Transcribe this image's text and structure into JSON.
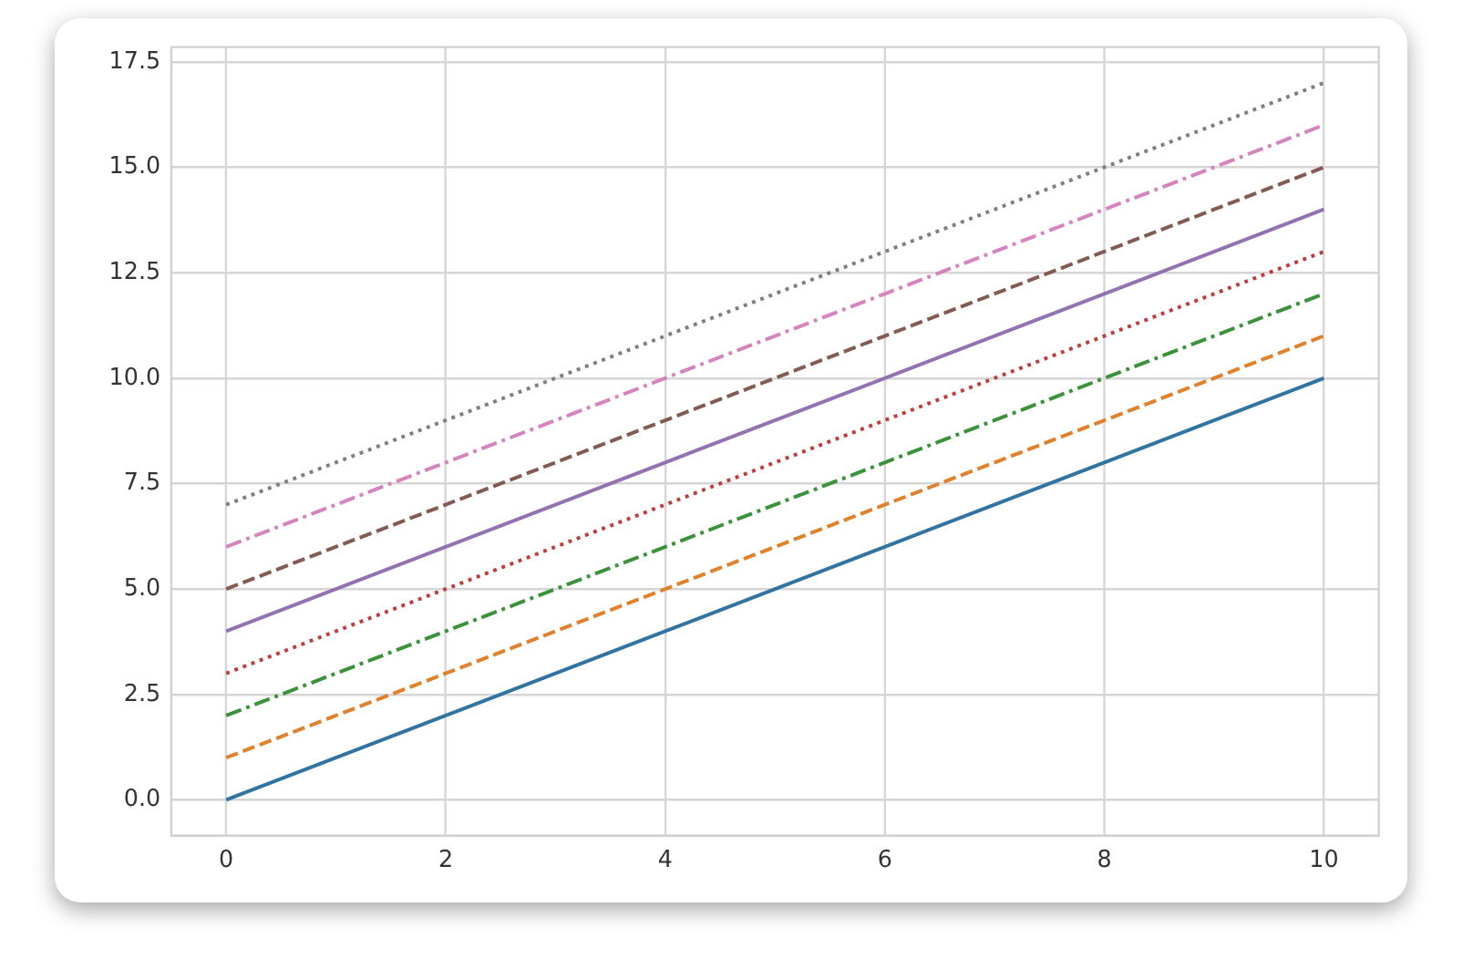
{
  "chart_data": {
    "type": "line",
    "x": [
      0,
      2,
      4,
      6,
      8,
      10
    ],
    "series": [
      {
        "color": "#3274a1",
        "line_style": "solid",
        "values": [
          0,
          2,
          4,
          6,
          8,
          10
        ]
      },
      {
        "color": "#e1812c",
        "line_style": "dashed",
        "values": [
          1,
          3,
          5,
          7,
          9,
          11
        ]
      },
      {
        "color": "#3a923a",
        "line_style": "dashdot",
        "values": [
          2,
          4,
          6,
          8,
          10,
          12
        ]
      },
      {
        "color": "#c03d3e",
        "line_style": "dotted",
        "values": [
          3,
          5,
          7,
          9,
          11,
          13
        ]
      },
      {
        "color": "#9372b2",
        "line_style": "solid",
        "values": [
          4,
          6,
          8,
          10,
          12,
          14
        ]
      },
      {
        "color": "#845b53",
        "line_style": "dashed",
        "values": [
          5,
          7,
          9,
          11,
          13,
          15
        ]
      },
      {
        "color": "#d684bd",
        "line_style": "dashdot",
        "values": [
          6,
          8,
          10,
          12,
          14,
          16
        ]
      },
      {
        "color": "#7f7f7f",
        "line_style": "dotted",
        "values": [
          7,
          9,
          11,
          13,
          15,
          17
        ]
      }
    ],
    "xlim": [
      -0.5,
      10.5
    ],
    "ylim": [
      -0.85,
      17.85
    ],
    "xticks": [
      0,
      2,
      4,
      6,
      8,
      10
    ],
    "yticks": [
      {
        "value": 0,
        "label": "0.0"
      },
      {
        "value": 2.5,
        "label": "2.5"
      },
      {
        "value": 5,
        "label": "5.0"
      },
      {
        "value": 7.5,
        "label": "7.5"
      },
      {
        "value": 10,
        "label": "10.0"
      },
      {
        "value": 12.5,
        "label": "12.5"
      },
      {
        "value": 15,
        "label": "15.0"
      },
      {
        "value": 17.5,
        "label": "17.5"
      }
    ],
    "grid": true,
    "legend": false,
    "marker": "none"
  }
}
